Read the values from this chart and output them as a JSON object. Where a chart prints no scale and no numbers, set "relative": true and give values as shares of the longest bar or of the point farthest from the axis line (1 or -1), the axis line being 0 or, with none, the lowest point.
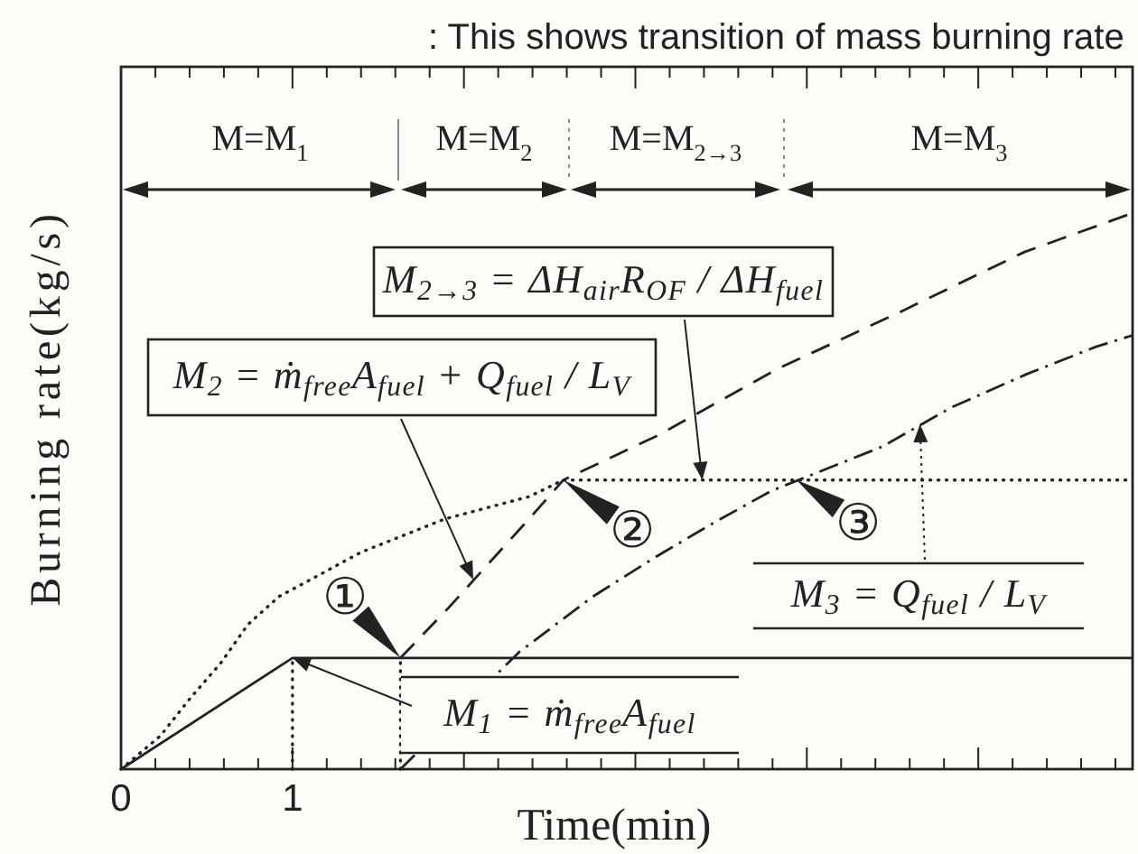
{
  "chart_data": {
    "type": "line",
    "title": ": This shows transition of mass burning rate",
    "xlabel": "Time(min)",
    "ylabel": "Burning rate(kg/s)",
    "relative": true,
    "xlim": [
      0,
      5.9
    ],
    "xticks": [
      0,
      {
        "value": 0.2,
        "label": null
      },
      {
        "value": 0.4,
        "label": null
      },
      {
        "value": 0.6,
        "label": null
      },
      {
        "value": 0.8,
        "label": null
      },
      1,
      {
        "value": 1.2,
        "label": null
      },
      {
        "value": 1.4,
        "label": null
      },
      {
        "value": 1.6,
        "label": null
      },
      {
        "value": 1.8,
        "label": null
      },
      {
        "value": 2,
        "label": null
      },
      {
        "value": 2.2,
        "label": null
      },
      {
        "value": 2.4,
        "label": null
      },
      {
        "value": 2.6,
        "label": null
      },
      {
        "value": 2.8,
        "label": null
      },
      {
        "value": 3,
        "label": null
      },
      {
        "value": 3.2,
        "label": null
      },
      {
        "value": 3.4,
        "label": null
      },
      {
        "value": 3.6,
        "label": null
      },
      {
        "value": 3.8,
        "label": null
      },
      {
        "value": 4,
        "label": null
      },
      {
        "value": 4.2,
        "label": null
      },
      {
        "value": 4.4,
        "label": null
      },
      {
        "value": 4.6,
        "label": null
      },
      {
        "value": 4.8,
        "label": null
      },
      {
        "value": 5,
        "label": null
      },
      {
        "value": 5.2,
        "label": null
      },
      {
        "value": 5.4,
        "label": null
      },
      {
        "value": 5.6,
        "label": null
      },
      {
        "value": 5.8,
        "label": null
      }
    ],
    "series": [
      {
        "color": "#222222",
        "line_style": "solid",
        "x": [
          0,
          1,
          5.9
        ],
        "values": [
          0,
          0.2,
          0.2
        ]
      },
      {
        "color": "#222222",
        "line_style": "dotted",
        "x": [
          0,
          0.23,
          0.41,
          0.58,
          0.74,
          0.92,
          1.4,
          1.89,
          2.38,
          2.58,
          5.9
        ],
        "values": [
          0,
          0.06,
          0.13,
          0.19,
          0.26,
          0.31,
          0.39,
          0.45,
          0.49,
          0.52,
          0.52
        ]
      },
      {
        "color": "#222222",
        "line_style": "dashed",
        "x": [
          1.63,
          1.91,
          2.38,
          2.58,
          3.13,
          3.83,
          4.53,
          5.27,
          5.9
        ],
        "values": [
          0.2,
          0.29,
          0.45,
          0.52,
          0.6,
          0.72,
          0.82,
          0.93,
          1
        ]
      },
      {
        "color": "#222222",
        "line_style": "dashdot",
        "x": [
          1.63,
          2.32,
          2.75,
          3.11,
          3.44,
          3.79,
          4.44,
          4.84,
          5.28,
          5.69,
          5.9
        ],
        "values": [
          0,
          0.21,
          0.31,
          0.38,
          0.44,
          0.5,
          0.58,
          0.65,
          0.71,
          0.76,
          0.78
        ]
      },
      {
        "color": "#222222",
        "line_style": "dotted",
        "x": [
          1,
          1
        ],
        "values": [
          0,
          0.2
        ]
      },
      {
        "color": "#222222",
        "line_style": "dotted",
        "x": [
          1.63,
          1.63
        ],
        "values": [
          0,
          0.2
        ]
      }
    ],
    "annotations": [
      "M=M$_{1}$",
      "M=M$_{2}$",
      "M=M$_{2→3}$",
      "M=M$_{3}$",
      {
        "text": "M$_{1}$ = ṁ$_{free}$A$_{fuel}$",
        "x": 1,
        "y": 0.2
      },
      "M$_{2}$ = ṁ$_{free}$A$_{fuel}$ + Q$_{fuel}$ / L$_{V}$",
      {
        "text": "M$_{2→3}$ = ΔH$_{air}$R$_{OF}$ / ΔH$_{fuel}$",
        "x": 3.39,
        "y": 0.52
      },
      {
        "text": "M$_{3}$ = Q$_{fuel}$ / L$_{V}$",
        "x": 4.66,
        "y": 0.62
      },
      {
        "text": "①",
        "x": 1.63,
        "y": 0.2
      },
      {
        "text": "②",
        "x": 2.58,
        "y": 0.52
      },
      {
        "text": "③",
        "x": 3.94,
        "y": 0.52
      }
    ]
  }
}
